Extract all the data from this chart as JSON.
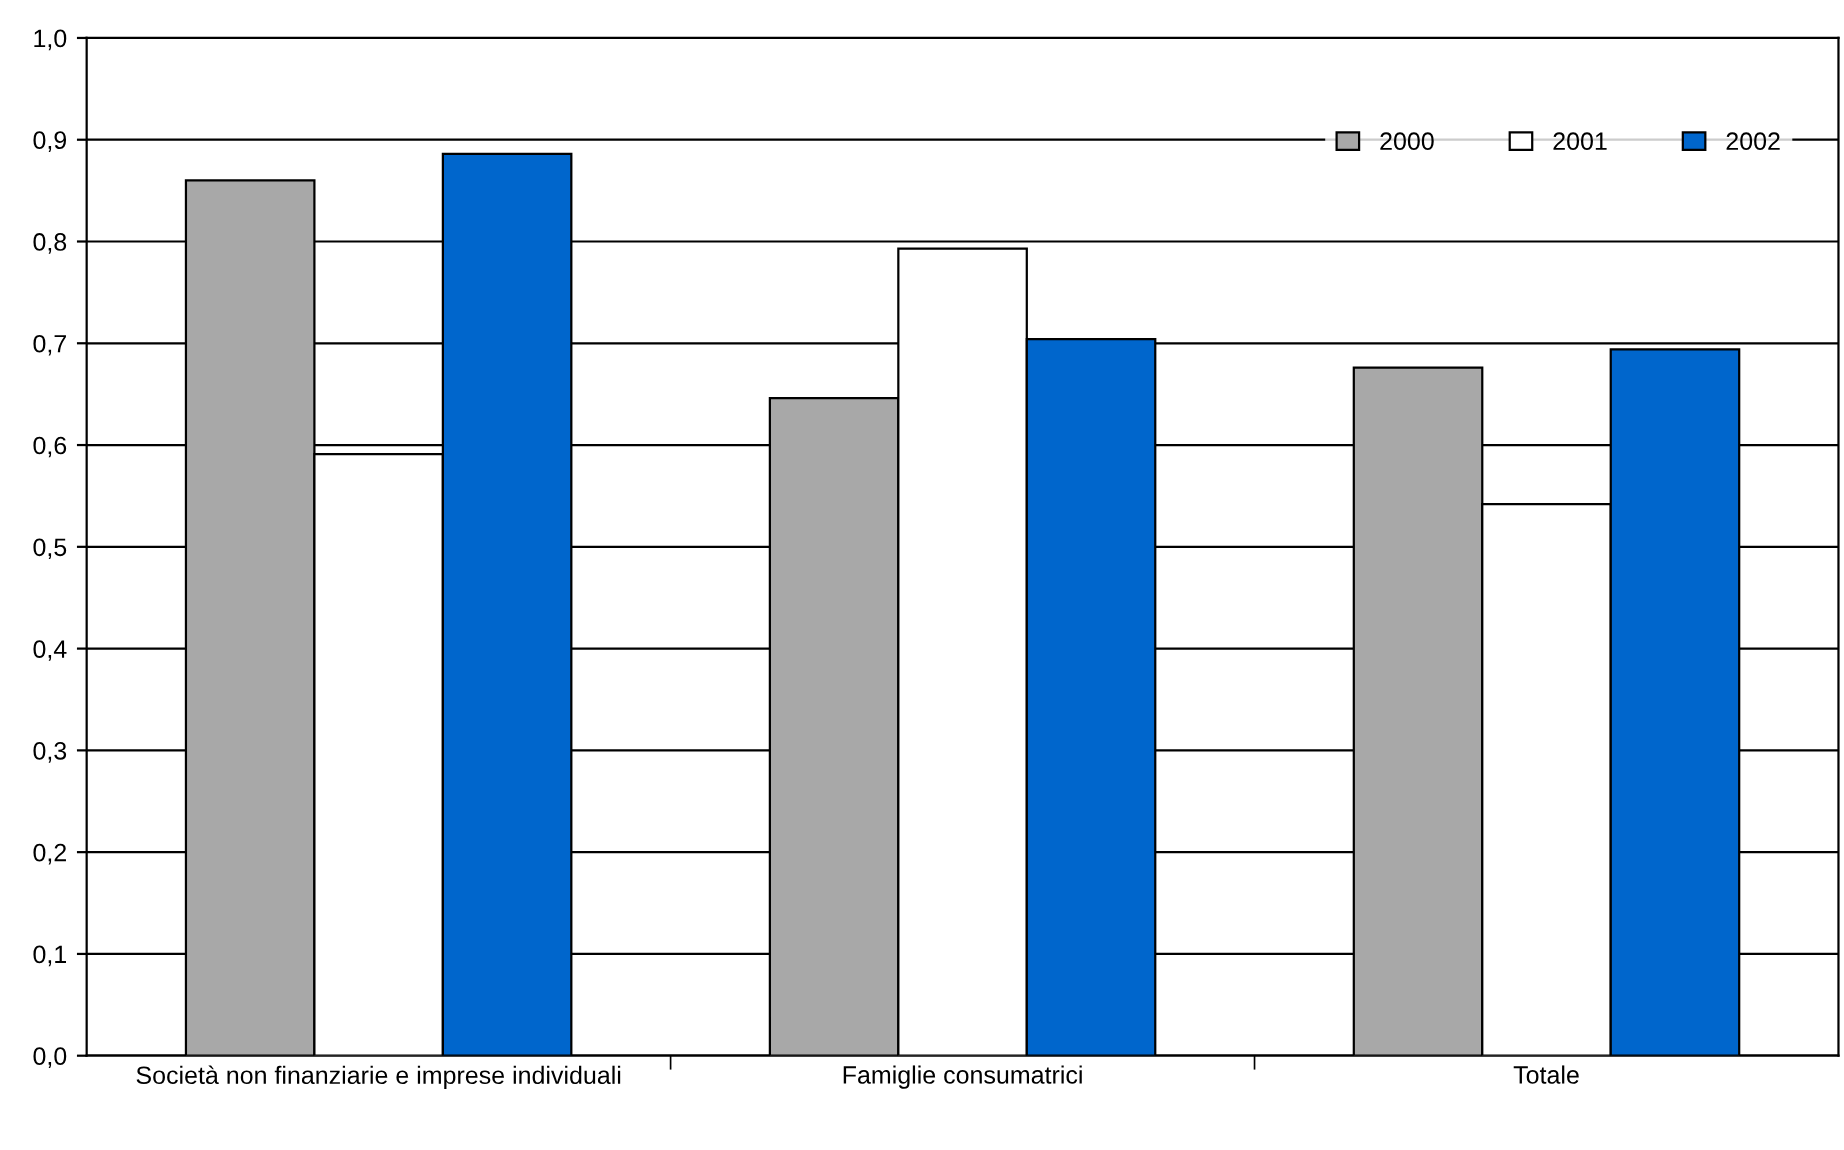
{
  "chart_data": {
    "type": "bar",
    "categories": [
      "Società non finanziarie e imprese individuali",
      "Famiglie consumatrici",
      "Totale"
    ],
    "series": [
      {
        "name": "2000",
        "color": "#a8a8a8",
        "values": [
          0.86,
          0.646,
          0.676
        ]
      },
      {
        "name": "2001",
        "color": "#ffffff",
        "values": [
          0.591,
          0.793,
          0.542
        ]
      },
      {
        "name": "2002",
        "color": "#0066cc",
        "values": [
          0.886,
          0.704,
          0.694
        ]
      }
    ],
    "ylim": [
      0,
      1
    ],
    "yticks": [
      {
        "value": 0,
        "label": "0,0"
      },
      {
        "value": 0.1,
        "label": "0,1"
      },
      {
        "value": 0.2,
        "label": "0,2"
      },
      {
        "value": 0.3,
        "label": "0,3"
      },
      {
        "value": 0.4,
        "label": "0,4"
      },
      {
        "value": 0.5,
        "label": "0,5"
      },
      {
        "value": 0.6,
        "label": "0,6"
      },
      {
        "value": 0.7,
        "label": "0,7"
      },
      {
        "value": 0.8,
        "label": "0,8"
      },
      {
        "value": 0.9,
        "label": "0,9"
      },
      {
        "value": 1,
        "label": "1,0"
      }
    ],
    "grid": "y",
    "legend": "top right"
  }
}
